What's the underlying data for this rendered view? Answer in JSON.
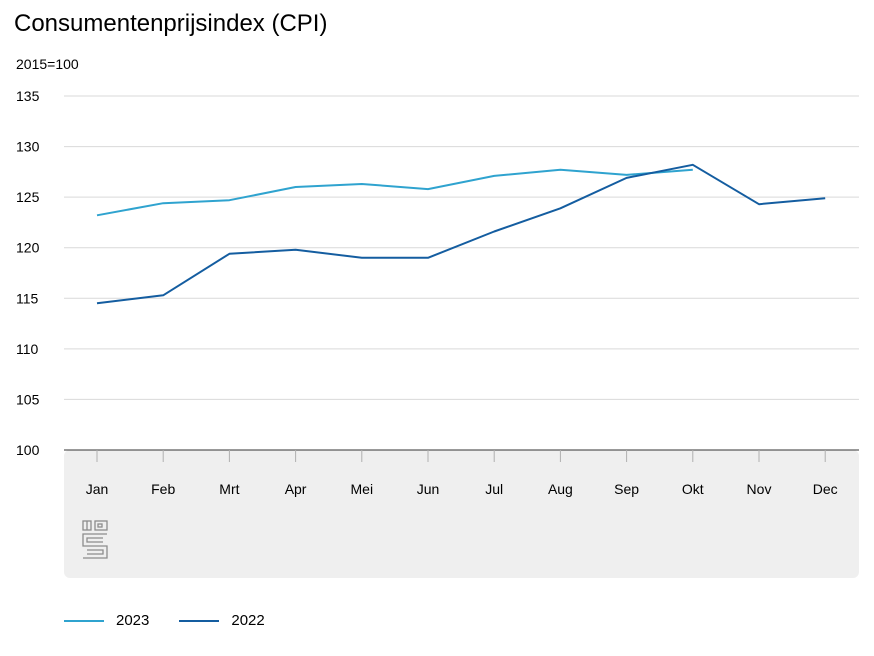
{
  "chart_data": {
    "type": "line",
    "title": "Consumentenprijsindex (CPI)",
    "ylabel": "2015=100",
    "xlabel": "",
    "categories": [
      "Jan",
      "Feb",
      "Mrt",
      "Apr",
      "Mei",
      "Jun",
      "Jul",
      "Aug",
      "Sep",
      "Okt",
      "Nov",
      "Dec"
    ],
    "ylim": [
      100,
      135
    ],
    "yticks": [
      100,
      105,
      110,
      115,
      120,
      125,
      130,
      135
    ],
    "grid": true,
    "legend_position": "bottom-left",
    "series": [
      {
        "name": "2023",
        "color": "#2FA3CF",
        "values": [
          123.2,
          124.4,
          124.7,
          126.0,
          126.3,
          125.8,
          127.1,
          127.7,
          127.2,
          127.7,
          null,
          null
        ]
      },
      {
        "name": "2022",
        "color": "#145DA0",
        "values": [
          114.5,
          115.3,
          119.4,
          119.8,
          119.0,
          119.0,
          121.6,
          123.9,
          126.9,
          128.2,
          124.3,
          124.9
        ]
      }
    ]
  }
}
